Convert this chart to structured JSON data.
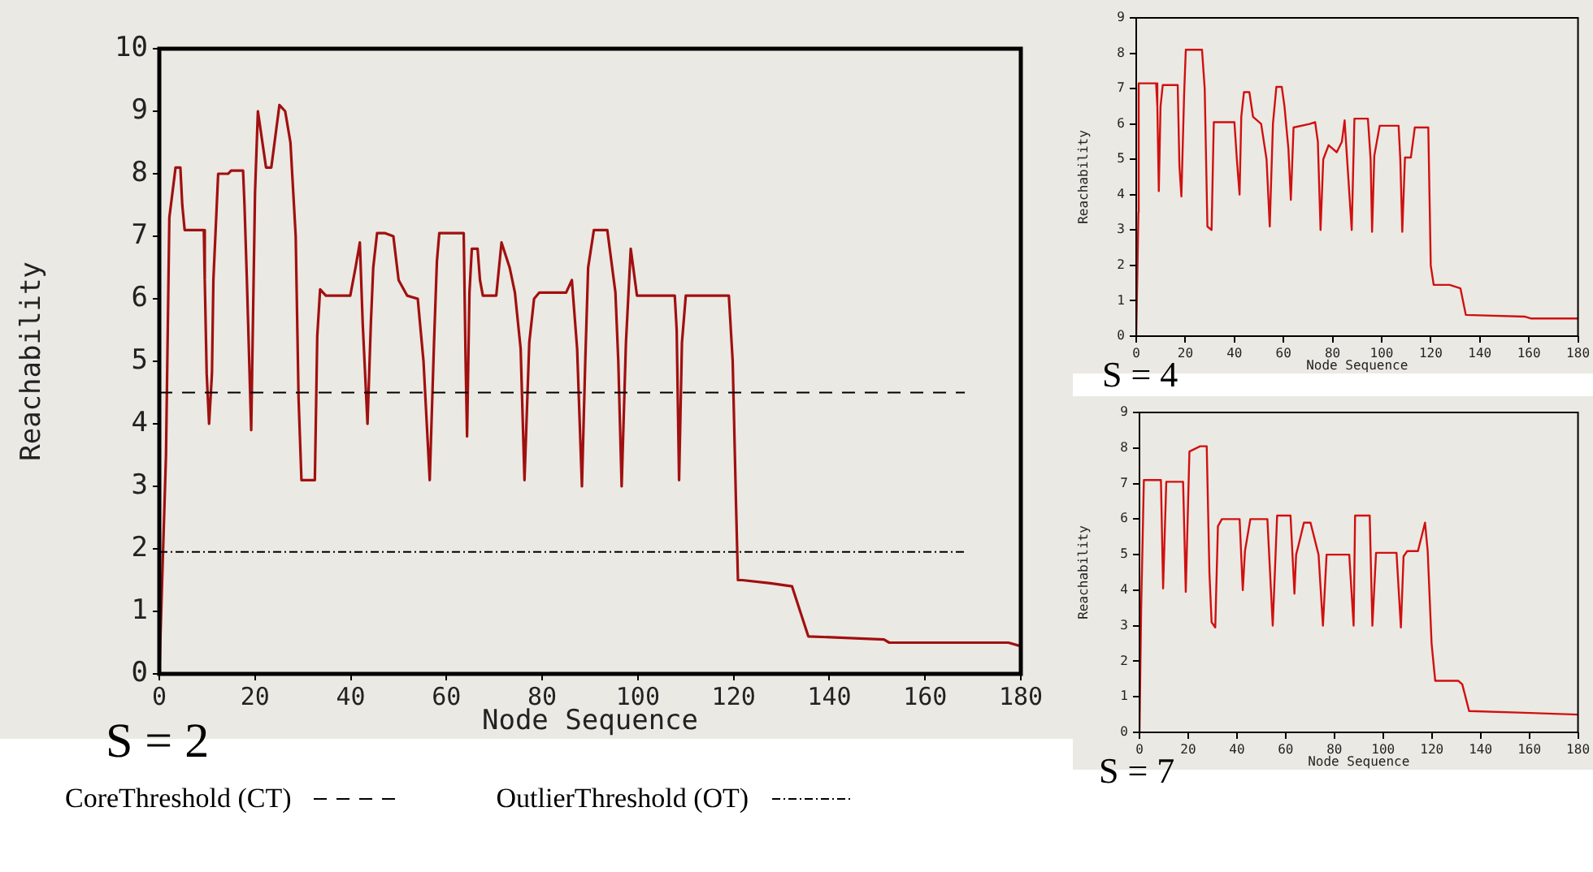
{
  "chart_data": [
    {
      "type": "line",
      "xlabel": "Node Sequence",
      "ylabel": "Reachability",
      "annotations": [
        "S = 2"
      ],
      "legend": "bottom",
      "grid": false,
      "xlim": [
        0,
        180
      ],
      "xticks": [
        0,
        20,
        40,
        60,
        80,
        100,
        120,
        140,
        160,
        180
      ],
      "ylim": [
        0,
        10
      ],
      "yticks": [
        0,
        1,
        2,
        3,
        4,
        5,
        6,
        7,
        8,
        9,
        10
      ],
      "ref_lines": [
        {
          "axis": "y",
          "value": 4.5,
          "label": "CoreThreshold (CT)",
          "color": "#000000",
          "line_style": "dashed"
        },
        {
          "axis": "y",
          "value": 1.95,
          "label": "OutlierThreshold (OT)",
          "color": "#000000",
          "line_style": "dashdot"
        }
      ],
      "series": [
        {
          "color": "#a01010",
          "x": [
            0,
            1.4,
            2.1,
            3.4,
            4.4,
            4.8,
            5.3,
            9.3,
            9.5,
            9.9,
            10.4,
            11,
            11.3,
            12.3,
            14.4,
            15,
            17.5,
            17.8,
            18.3,
            19.2,
            20,
            20.6,
            22.3,
            23.4,
            25.1,
            26.3,
            27.4,
            28.5,
            29.1,
            29.7,
            32.5,
            33,
            33.6,
            34.8,
            39.9,
            41,
            41.9,
            42.5,
            43.5,
            44.2,
            44.7,
            45.5,
            47.2,
            48.9,
            50,
            51.8,
            54,
            55.2,
            56.5,
            57.4,
            58,
            58.5,
            63.6,
            64,
            64.3,
            64.8,
            65.3,
            66.5,
            67,
            67.6,
            70.4,
            71.5,
            73.2,
            74.3,
            75.5,
            76.3,
            77.3,
            78.3,
            79.4,
            85,
            86.2,
            87.3,
            88.3,
            89,
            89.6,
            90.8,
            93.6,
            95.3,
            95.9,
            96.6,
            97.5,
            98.5,
            99.8,
            107.7,
            108.1,
            108.6,
            109.2,
            110,
            119,
            119.8,
            120.5,
            120.9,
            121.8,
            127.7,
            132.2,
            133.9,
            135.6,
            151.4,
            152.5,
            177.4,
            179.7
          ],
          "values": [
            0,
            3.5,
            7.3,
            8.1,
            8.1,
            7.5,
            7.1,
            7.1,
            6.3,
            4.8,
            4.0,
            4.8,
            6.3,
            8.0,
            8.0,
            8.05,
            8.05,
            7.5,
            6.3,
            3.9,
            7.7,
            9.0,
            8.1,
            8.1,
            9.1,
            9.0,
            8.5,
            7.0,
            4.4,
            3.1,
            3.1,
            5.4,
            6.15,
            6.05,
            6.05,
            6.5,
            6.9,
            5.6,
            4.0,
            5.6,
            6.5,
            7.05,
            7.05,
            7.0,
            6.3,
            6.05,
            6.0,
            5.0,
            3.1,
            5.3,
            6.6,
            7.05,
            7.05,
            5.0,
            3.8,
            6.1,
            6.8,
            6.8,
            6.3,
            6.05,
            6.05,
            6.9,
            6.5,
            6.1,
            5.2,
            3.1,
            5.3,
            6.0,
            6.1,
            6.1,
            6.3,
            5.2,
            3.0,
            5.0,
            6.5,
            7.1,
            7.1,
            6.1,
            5.0,
            3.0,
            5.3,
            6.8,
            6.05,
            6.05,
            5.5,
            3.1,
            5.3,
            6.05,
            6.05,
            5.0,
            2.7,
            1.5,
            1.5,
            1.45,
            1.4,
            1.0,
            0.6,
            0.55,
            0.5,
            0.5,
            0.45
          ]
        }
      ]
    },
    {
      "type": "line",
      "xlabel": "Node Sequence",
      "ylabel": "Reachability",
      "annotations": [
        "S = 4"
      ],
      "grid": false,
      "xlim": [
        0,
        180
      ],
      "xticks": [
        0,
        20,
        40,
        60,
        80,
        100,
        120,
        140,
        160,
        180
      ],
      "ylim": [
        0,
        9
      ],
      "yticks": [
        0,
        1,
        2,
        3,
        4,
        5,
        6,
        7,
        8,
        9
      ],
      "series": [
        {
          "color": "#d01010",
          "x": [
            0,
            0.9,
            1,
            8.1,
            8.6,
            9.2,
            9.9,
            10.8,
            16.9,
            17.6,
            18.4,
            19.5,
            20.2,
            26.8,
            27.9,
            29,
            30.7,
            31.6,
            40,
            41,
            42.1,
            42.8,
            43.9,
            46.1,
            47.6,
            50.9,
            53.1,
            54.4,
            55.7,
            57.1,
            59.3,
            60.4,
            62,
            63,
            64.1,
            70.7,
            72.9,
            74,
            75.1,
            76.2,
            78.4,
            81.7,
            83.8,
            84.9,
            87.8,
            88.9,
            94.4,
            95.5,
            96.1,
            97,
            99.2,
            106.9,
            107.6,
            108.4,
            109.5,
            111.9,
            113.5,
            119,
            120,
            121.2,
            127.7,
            132.1,
            134.3,
            158.5,
            160.7,
            180
          ],
          "values": [
            0,
            3.5,
            7.15,
            7.15,
            6.5,
            4.1,
            6.5,
            7.1,
            7.1,
            4.8,
            3.95,
            6.8,
            8.1,
            8.1,
            7.0,
            3.1,
            3.0,
            6.05,
            6.05,
            5.0,
            4.0,
            6.2,
            6.9,
            6.9,
            6.2,
            6.0,
            5.0,
            3.1,
            6.0,
            7.05,
            7.05,
            6.5,
            5.3,
            3.85,
            5.9,
            6.0,
            6.05,
            5.5,
            3.0,
            5.0,
            5.4,
            5.2,
            5.5,
            6.1,
            3.0,
            6.15,
            6.15,
            5.0,
            2.95,
            5.1,
            5.95,
            5.95,
            5.0,
            2.95,
            5.05,
            5.05,
            5.9,
            5.9,
            2.0,
            1.45,
            1.45,
            1.35,
            0.6,
            0.55,
            0.5,
            0.5
          ]
        }
      ]
    },
    {
      "type": "line",
      "xlabel": "Node Sequence",
      "ylabel": "Reachability",
      "annotations": [
        "S = 7"
      ],
      "grid": false,
      "xlim": [
        0,
        180
      ],
      "xticks": [
        0,
        20,
        40,
        60,
        80,
        100,
        120,
        140,
        160,
        180
      ],
      "ylim": [
        0,
        9
      ],
      "yticks": [
        0,
        1,
        2,
        3,
        4,
        5,
        6,
        7,
        8,
        9
      ],
      "series": [
        {
          "color": "#d01010",
          "x": [
            0,
            0.7,
            1.8,
            8.8,
            9.7,
            11,
            17.9,
            19,
            20.5,
            24.9,
            27.6,
            28.7,
            29.6,
            31.1,
            32.2,
            33.8,
            41.1,
            42.4,
            43.3,
            45.5,
            52.5,
            54.7,
            56.5,
            62,
            63.6,
            64.3,
            65.4,
            67.5,
            70.2,
            73.5,
            75.3,
            76.8,
            86.1,
            87.9,
            88.5,
            94.5,
            95.6,
            97.1,
            105.5,
            107.3,
            108.4,
            109.9,
            114.3,
            117.2,
            118.3,
            119.9,
            121.4,
            130.9,
            132.5,
            135.3,
            158,
            180
          ],
          "values": [
            0,
            3.5,
            7.1,
            7.1,
            4.05,
            7.05,
            7.05,
            3.95,
            7.9,
            8.05,
            8.05,
            4.5,
            3.1,
            2.95,
            5.8,
            6.0,
            6.0,
            4.0,
            5.1,
            6.0,
            6.0,
            3.0,
            6.1,
            6.1,
            3.9,
            5.0,
            5.3,
            5.9,
            5.9,
            5.0,
            3.0,
            5.0,
            5.0,
            3.0,
            6.1,
            6.1,
            3.0,
            5.05,
            5.05,
            2.95,
            4.95,
            5.1,
            5.1,
            5.9,
            5.1,
            2.5,
            1.45,
            1.45,
            1.35,
            0.6,
            0.55,
            0.5
          ]
        }
      ]
    }
  ]
}
